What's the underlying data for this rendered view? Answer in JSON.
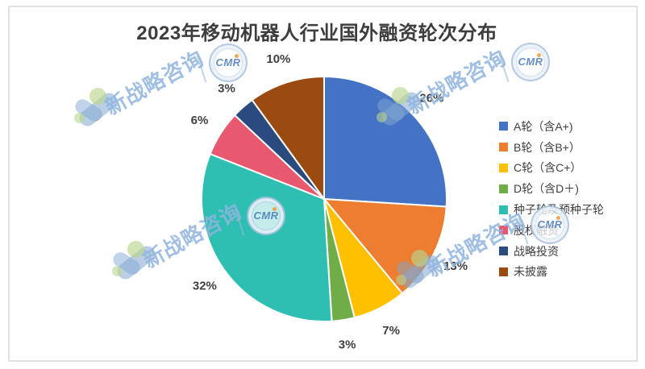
{
  "watermark": {
    "text": "新战略咨询",
    "stamp_text": "CMR"
  },
  "chart_data": {
    "type": "pie",
    "title": "2023年移动机器人行业国外融资轮次分布",
    "categories": [
      "A轮（含A+)",
      "B轮（含B+）",
      "C轮（含C+）",
      "D轮（含D＋)",
      "种子轮及预种子轮",
      "股权融资",
      "战略投资",
      "未披露"
    ],
    "values": [
      26,
      13,
      7,
      3,
      32,
      6,
      3,
      10
    ],
    "percent_labels": [
      "26%",
      "13%",
      "7%",
      "3%",
      "32%",
      "6%",
      "3%",
      "10%"
    ],
    "colors": [
      "#4472C4",
      "#ED7D31",
      "#FFC000",
      "#70AD47",
      "#2FBFB2",
      "#E8596F",
      "#2B4B7E",
      "#9C4B10"
    ],
    "start_angle_deg": 0,
    "direction": "clockwise",
    "label_position": "outside",
    "legend_position": "right",
    "label_color": "#404040",
    "title_color": "#3D3D3D"
  }
}
